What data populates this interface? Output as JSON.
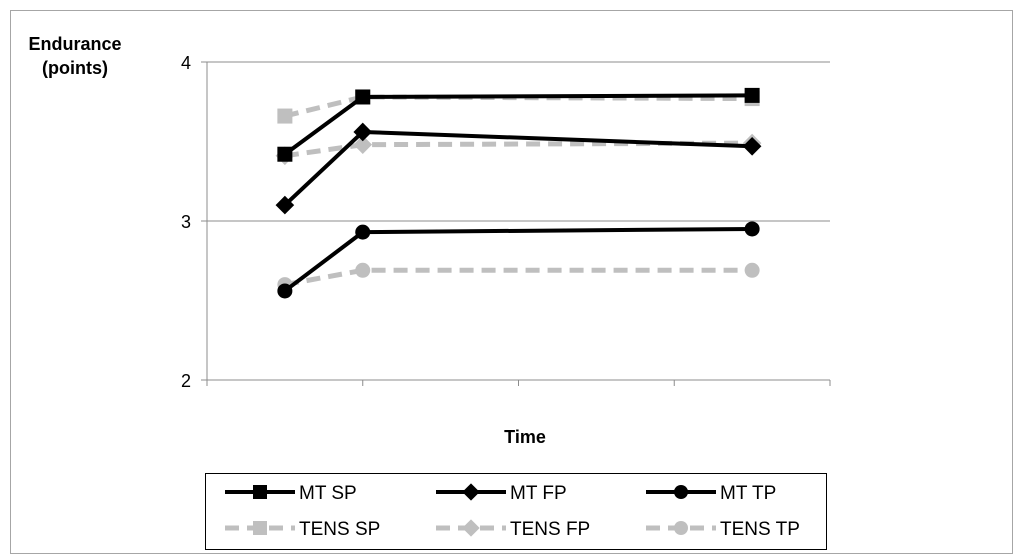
{
  "chart_data": {
    "type": "line",
    "title": "",
    "ylabel_lines": [
      "Endurance",
      "(points)"
    ],
    "xlabel": "Time",
    "ylim": [
      2,
      4
    ],
    "yticks": [
      "2",
      "3",
      "4"
    ],
    "grid": "horizontal",
    "legend_position": "bottom",
    "x": [
      0.5,
      1,
      3.5
    ],
    "series": [
      {
        "name": "MT SP",
        "values": [
          3.42,
          3.78,
          3.79
        ],
        "marker": "square",
        "color": "#000000",
        "dashed": false
      },
      {
        "name": "MT FP",
        "values": [
          3.1,
          3.56,
          3.47
        ],
        "marker": "diamond",
        "color": "#000000",
        "dashed": false
      },
      {
        "name": "MT TP",
        "values": [
          2.56,
          2.93,
          2.95
        ],
        "marker": "circle",
        "color": "#000000",
        "dashed": false
      },
      {
        "name": "TENS SP",
        "values": [
          3.66,
          3.78,
          3.77
        ],
        "marker": "square",
        "color": "#bfbfbf",
        "dashed": true
      },
      {
        "name": "TENS FP",
        "values": [
          3.41,
          3.48,
          3.49
        ],
        "marker": "diamond",
        "color": "#bfbfbf",
        "dashed": true
      },
      {
        "name": "TENS TP",
        "values": [
          2.6,
          2.69,
          2.69
        ],
        "marker": "circle",
        "color": "#bfbfbf",
        "dashed": true
      }
    ]
  }
}
